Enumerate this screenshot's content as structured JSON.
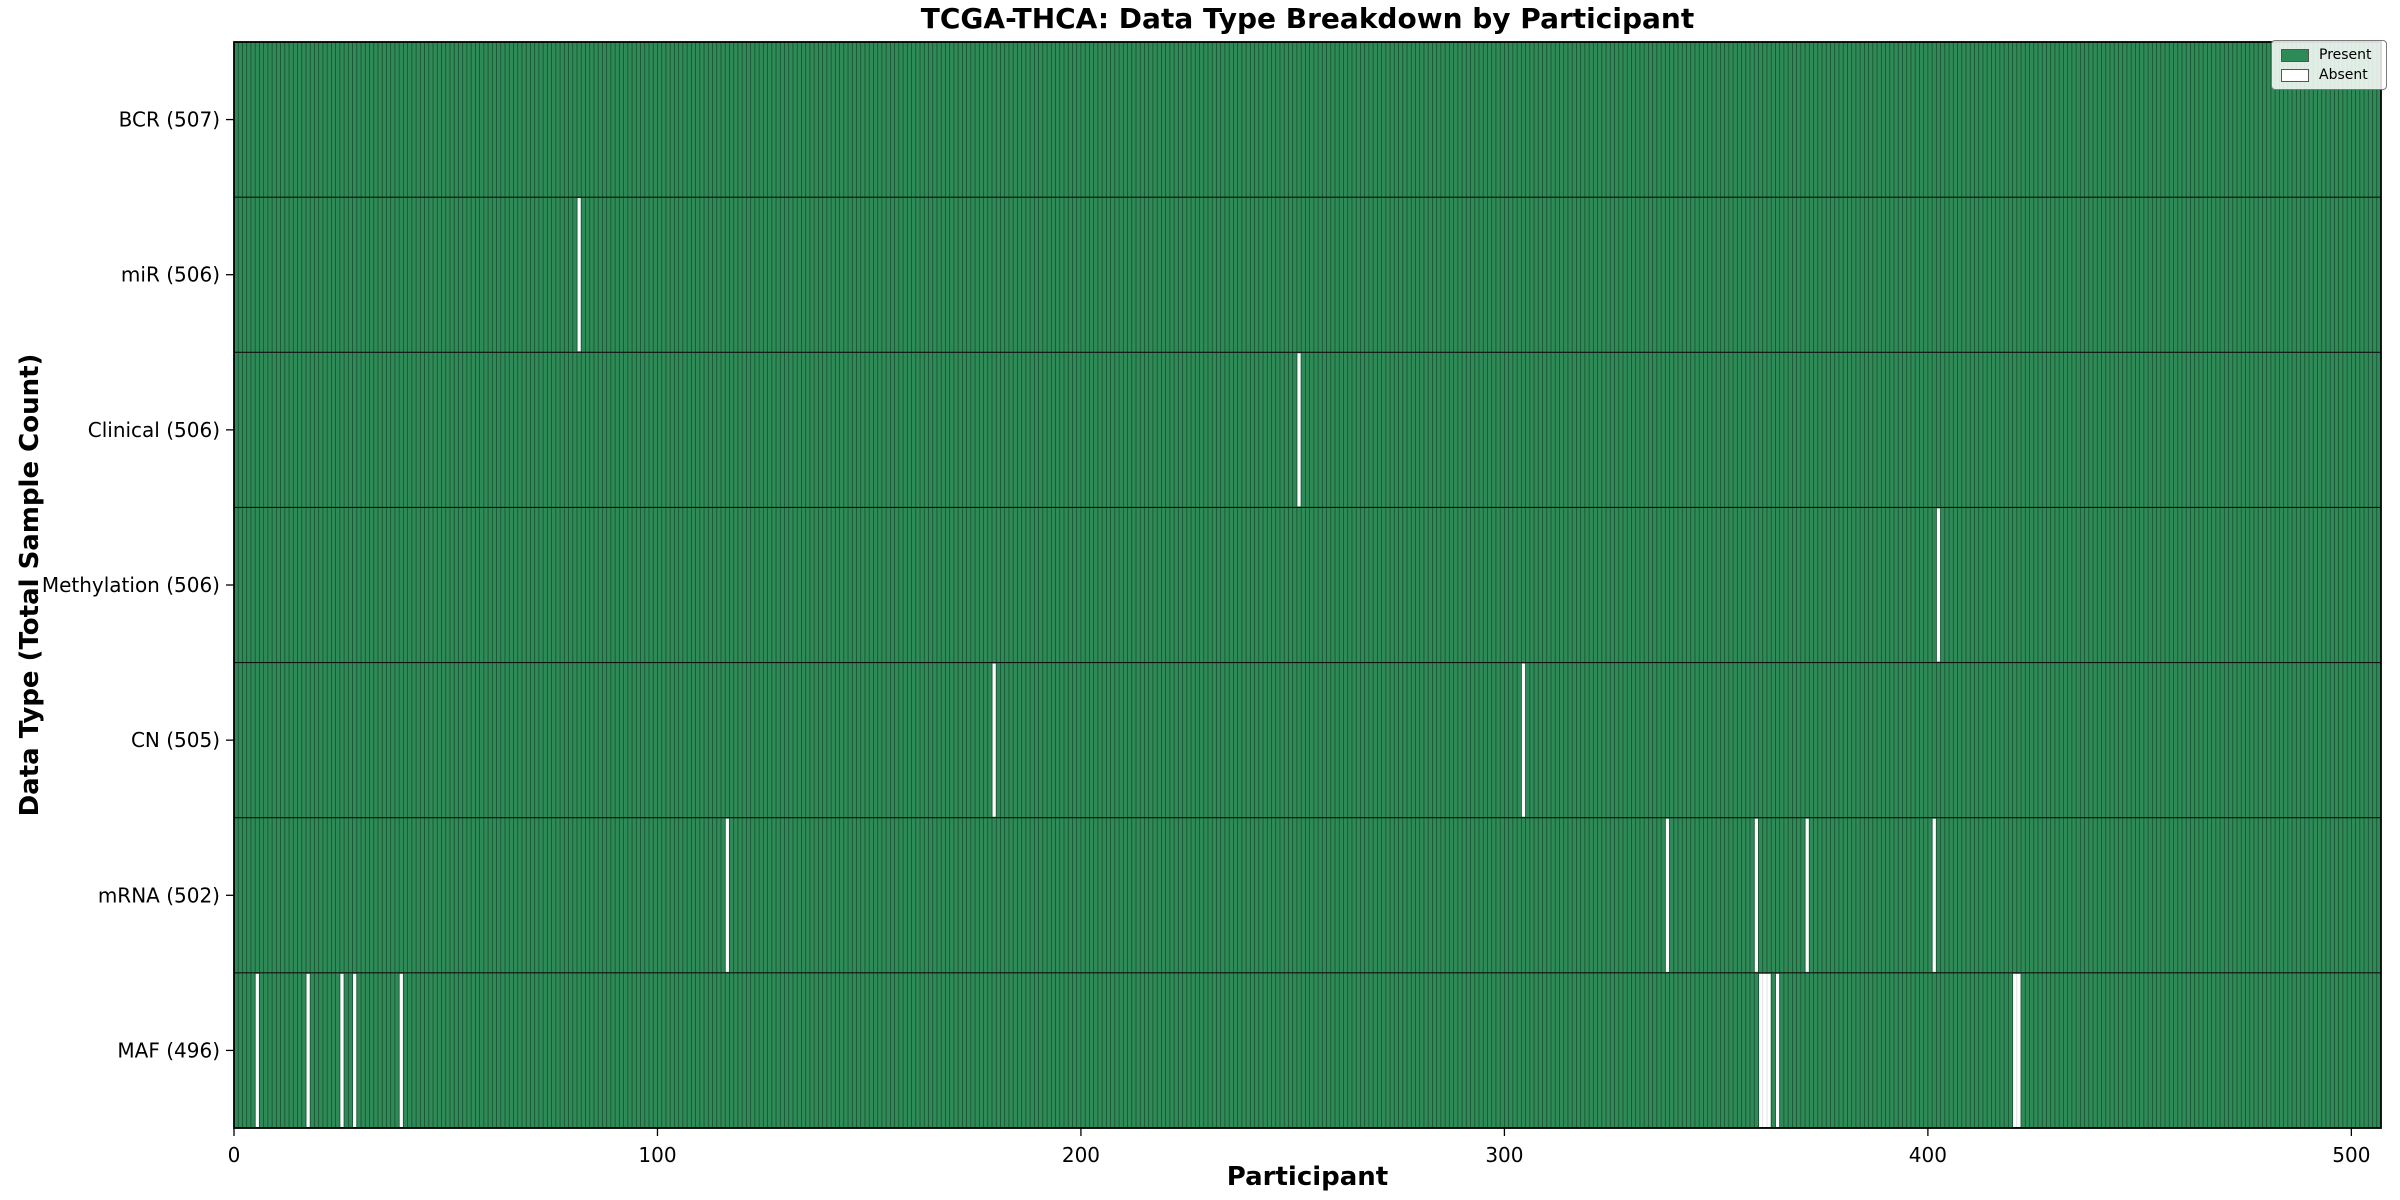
{
  "figure": {
    "title": "TCGA-THCA: Data Type Breakdown by Participant",
    "xlabel": "Participant",
    "ylabel": "Data Type (Total Sample Count)"
  },
  "legend": {
    "items": [
      {
        "label": "Present",
        "color": "#2e8b57"
      },
      {
        "label": "Absent",
        "color": "#ffffff"
      }
    ]
  },
  "chart_data": {
    "type": "heatmap",
    "title": "TCGA-THCA: Data Type Breakdown by Participant",
    "xlabel": "Participant",
    "ylabel": "Data Type (Total Sample Count)",
    "legend_position": "upper right",
    "legend_entries": [
      "Present",
      "Absent"
    ],
    "n_participants": 507,
    "x_ticks": [
      0,
      100,
      200,
      300,
      400,
      500
    ],
    "xlim": [
      0,
      507
    ],
    "colors": {
      "present": "#2e8b57",
      "absent": "#ffffff",
      "bar_edge": "rgba(0,0,0,0.45)",
      "row_separator": "#111111",
      "frame": "#000000"
    },
    "rows": [
      {
        "label": "BCR (507)",
        "data_type": "BCR",
        "total": 507,
        "absent_participants": []
      },
      {
        "label": "miR (506)",
        "data_type": "miR",
        "total": 506,
        "absent_participants": [
          81
        ]
      },
      {
        "label": "Clinical (506)",
        "data_type": "Clinical",
        "total": 506,
        "absent_participants": [
          251
        ]
      },
      {
        "label": "Methylation (506)",
        "data_type": "Methylation",
        "total": 506,
        "absent_participants": [
          402
        ]
      },
      {
        "label": "CN (505)",
        "data_type": "CN",
        "total": 505,
        "absent_participants": [
          179,
          304
        ]
      },
      {
        "label": "mRNA (502)",
        "data_type": "mRNA",
        "total": 502,
        "absent_participants": [
          116,
          338,
          359,
          371,
          401
        ]
      },
      {
        "label": "MAF (496)",
        "data_type": "MAF",
        "total": 496,
        "absent_participants": [
          5,
          17,
          25,
          28,
          39,
          360,
          361,
          362,
          364,
          420,
          421
        ]
      }
    ]
  }
}
